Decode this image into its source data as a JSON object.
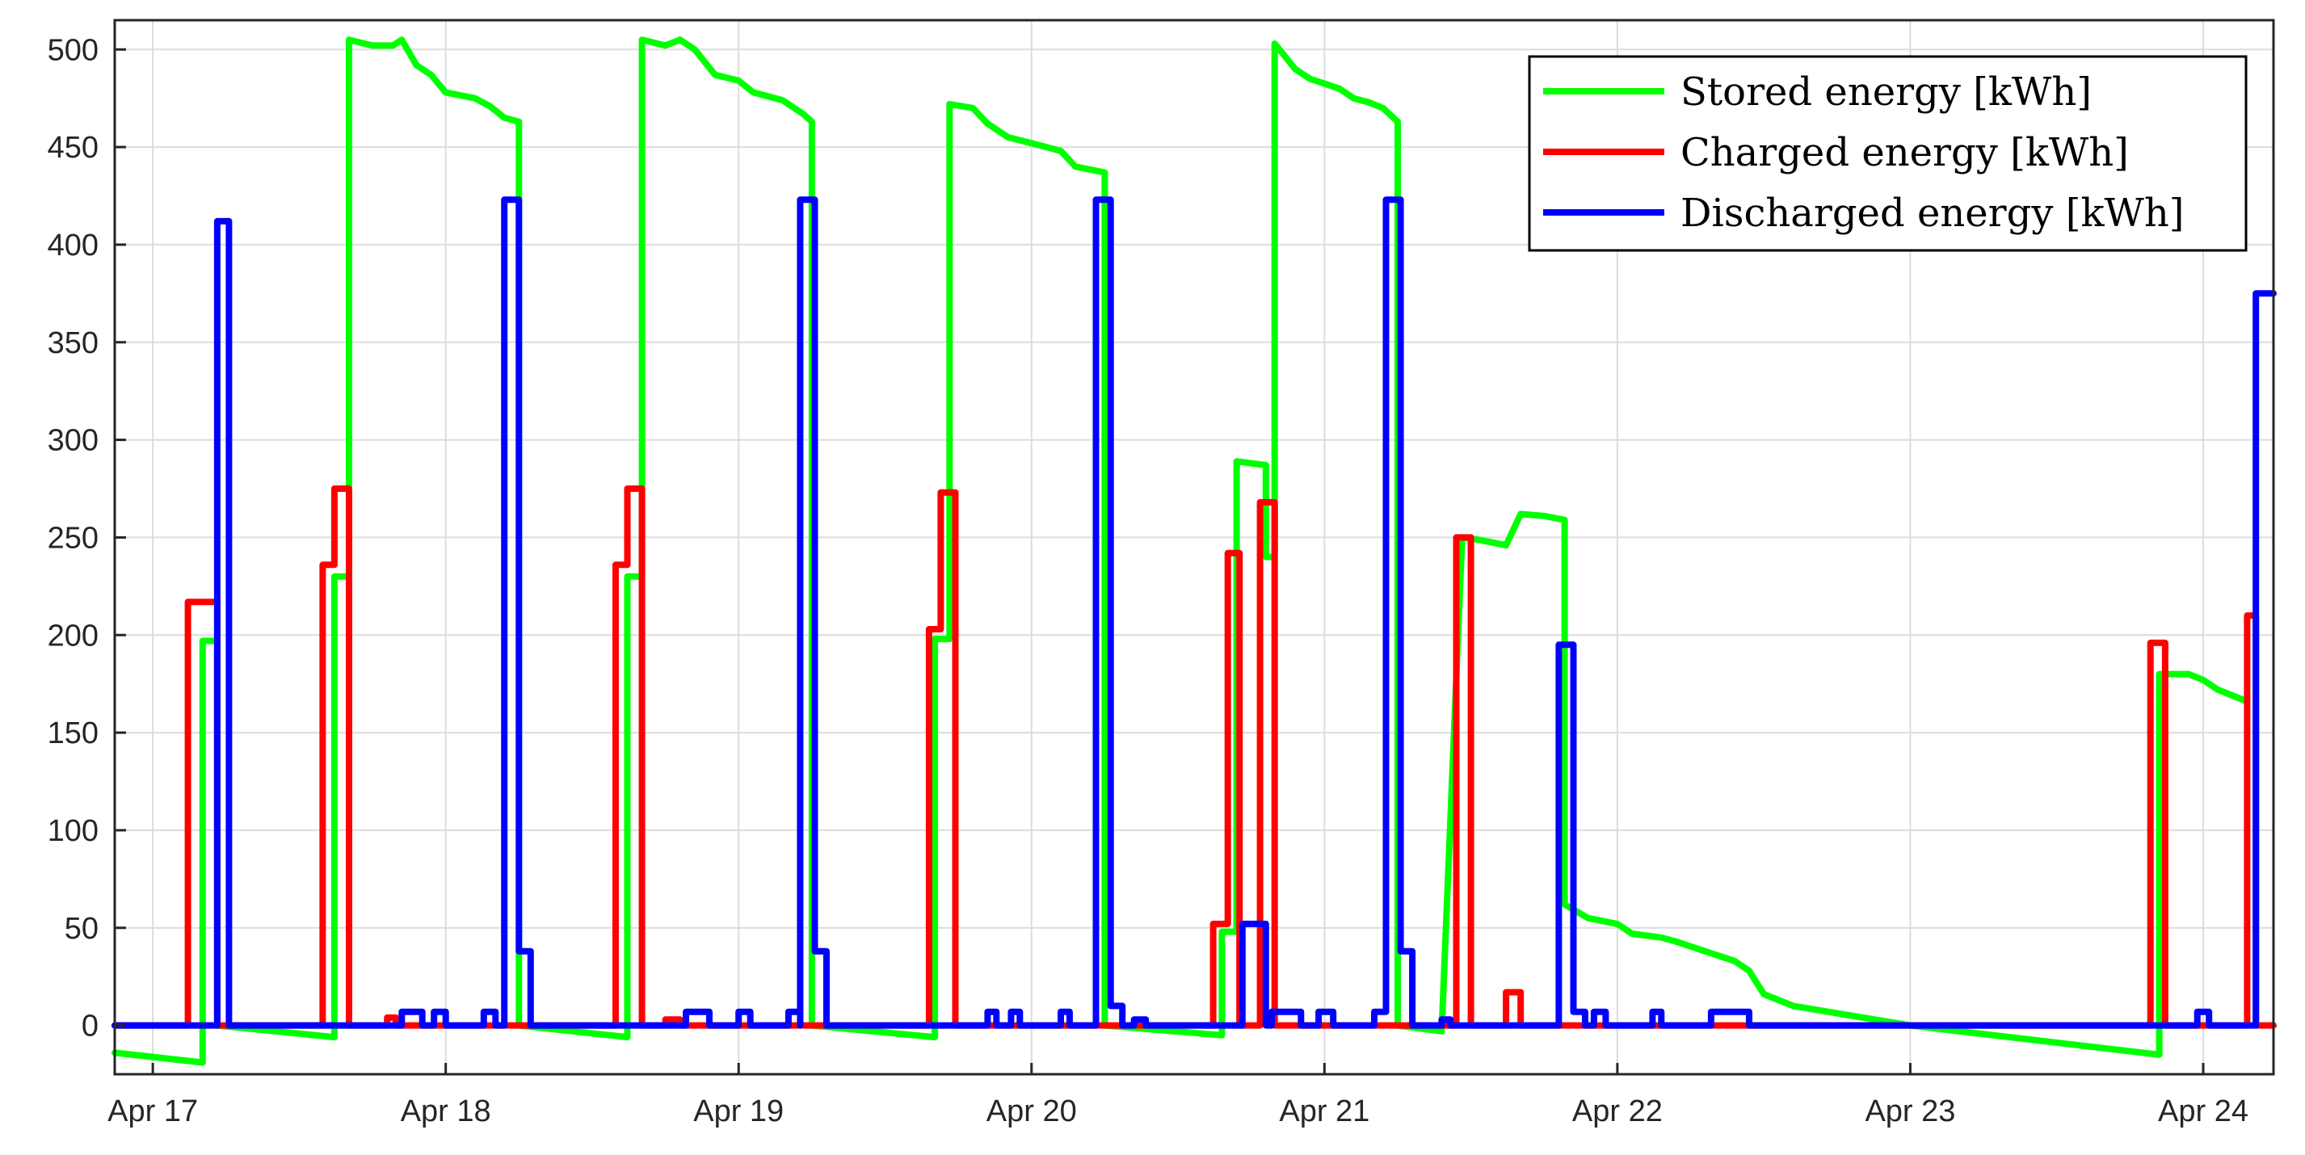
{
  "chart_data": {
    "type": "line",
    "title": "",
    "xlabel": "",
    "ylabel": "",
    "x_axis": {
      "ticks": [
        0,
        1,
        2,
        3,
        4,
        5,
        6,
        7
      ],
      "tick_labels": [
        "Apr 17",
        "Apr 18",
        "Apr 19",
        "Apr 20",
        "Apr 21",
        "Apr 22",
        "Apr 23",
        "Apr 24"
      ],
      "range_days_since_apr17": [
        -0.13,
        7.24
      ]
    },
    "y_axis": {
      "ticks": [
        0,
        50,
        100,
        150,
        200,
        250,
        300,
        350,
        400,
        450,
        500
      ],
      "tick_labels": [
        "0",
        "50",
        "100",
        "150",
        "200",
        "250",
        "300",
        "350",
        "400",
        "450",
        "500"
      ],
      "range": [
        -25,
        515
      ]
    },
    "grid": true,
    "legend_position": "top-right",
    "series": [
      {
        "name": "Stored energy [kWh]",
        "color": "#00ff00",
        "points": [
          [
            -0.13,
            -14
          ],
          [
            0.17,
            -19
          ],
          [
            0.17,
            197
          ],
          [
            0.22,
            197
          ],
          [
            0.22,
            0
          ],
          [
            0.62,
            -6
          ],
          [
            0.62,
            230
          ],
          [
            0.67,
            230
          ],
          [
            0.67,
            274
          ],
          [
            0.67,
            505
          ],
          [
            0.75,
            502
          ],
          [
            0.82,
            502
          ],
          [
            0.85,
            505
          ],
          [
            0.9,
            492
          ],
          [
            0.95,
            487
          ],
          [
            1.0,
            478
          ],
          [
            1.1,
            475
          ],
          [
            1.15,
            471
          ],
          [
            1.2,
            465
          ],
          [
            1.25,
            463
          ],
          [
            1.25,
            0
          ],
          [
            1.62,
            -6
          ],
          [
            1.62,
            230
          ],
          [
            1.67,
            230
          ],
          [
            1.67,
            274
          ],
          [
            1.67,
            505
          ],
          [
            1.75,
            502
          ],
          [
            1.8,
            505
          ],
          [
            1.85,
            500
          ],
          [
            1.92,
            487
          ],
          [
            2.0,
            484
          ],
          [
            2.05,
            478
          ],
          [
            2.15,
            474
          ],
          [
            2.22,
            467
          ],
          [
            2.25,
            463
          ],
          [
            2.25,
            0
          ],
          [
            2.67,
            -6
          ],
          [
            2.67,
            198
          ],
          [
            2.72,
            198
          ],
          [
            2.72,
            472
          ],
          [
            2.8,
            470
          ],
          [
            2.85,
            462
          ],
          [
            2.92,
            455
          ],
          [
            3.0,
            452
          ],
          [
            3.1,
            448
          ],
          [
            3.15,
            440
          ],
          [
            3.25,
            437
          ],
          [
            3.25,
            0
          ],
          [
            3.65,
            -5
          ],
          [
            3.65,
            48
          ],
          [
            3.7,
            48
          ],
          [
            3.7,
            289
          ],
          [
            3.8,
            287
          ],
          [
            3.8,
            240
          ],
          [
            3.83,
            240
          ],
          [
            3.83,
            503
          ],
          [
            3.9,
            490
          ],
          [
            3.95,
            485
          ],
          [
            4.05,
            480
          ],
          [
            4.1,
            475
          ],
          [
            4.15,
            473
          ],
          [
            4.2,
            470
          ],
          [
            4.25,
            463
          ],
          [
            4.25,
            0
          ],
          [
            4.4,
            -3
          ],
          [
            4.47,
            250
          ],
          [
            4.52,
            249
          ],
          [
            4.62,
            246
          ],
          [
            4.67,
            262
          ],
          [
            4.75,
            261
          ],
          [
            4.82,
            259
          ],
          [
            4.82,
            62
          ],
          [
            4.9,
            55
          ],
          [
            5.0,
            52
          ],
          [
            5.05,
            47
          ],
          [
            5.15,
            45
          ],
          [
            5.2,
            43
          ],
          [
            5.3,
            38
          ],
          [
            5.4,
            33
          ],
          [
            5.45,
            28
          ],
          [
            5.5,
            16
          ],
          [
            5.6,
            10
          ],
          [
            6.0,
            0
          ],
          [
            6.85,
            -15
          ],
          [
            6.85,
            180
          ],
          [
            6.95,
            180
          ],
          [
            7.0,
            177
          ],
          [
            7.05,
            172
          ],
          [
            7.15,
            166
          ]
        ]
      },
      {
        "name": "Charged energy [kWh]",
        "color": "#ff0000",
        "points": [
          [
            -0.13,
            0
          ],
          [
            0.12,
            0
          ],
          [
            0.12,
            217
          ],
          [
            0.17,
            217
          ],
          [
            0.22,
            217
          ],
          [
            0.22,
            0
          ],
          [
            0.58,
            0
          ],
          [
            0.58,
            236
          ],
          [
            0.62,
            236
          ],
          [
            0.62,
            275
          ],
          [
            0.67,
            275
          ],
          [
            0.67,
            0
          ],
          [
            0.8,
            0
          ],
          [
            0.8,
            4
          ],
          [
            0.83,
            4
          ],
          [
            0.83,
            0
          ],
          [
            1.58,
            0
          ],
          [
            1.58,
            236
          ],
          [
            1.62,
            236
          ],
          [
            1.62,
            275
          ],
          [
            1.67,
            275
          ],
          [
            1.67,
            0
          ],
          [
            1.75,
            0
          ],
          [
            1.75,
            3
          ],
          [
            1.8,
            3
          ],
          [
            1.8,
            0
          ],
          [
            2.65,
            0
          ],
          [
            2.65,
            203
          ],
          [
            2.69,
            203
          ],
          [
            2.69,
            273
          ],
          [
            2.74,
            273
          ],
          [
            2.74,
            0
          ],
          [
            3.62,
            0
          ],
          [
            3.62,
            52
          ],
          [
            3.67,
            52
          ],
          [
            3.67,
            242
          ],
          [
            3.71,
            242
          ],
          [
            3.71,
            0
          ],
          [
            3.78,
            0
          ],
          [
            3.78,
            268
          ],
          [
            3.83,
            268
          ],
          [
            3.83,
            0
          ],
          [
            3.88,
            0
          ],
          [
            4.45,
            0
          ],
          [
            4.45,
            250
          ],
          [
            4.5,
            250
          ],
          [
            4.5,
            0
          ],
          [
            4.62,
            0
          ],
          [
            4.62,
            17
          ],
          [
            4.67,
            17
          ],
          [
            4.67,
            0
          ],
          [
            6.82,
            0
          ],
          [
            6.82,
            196
          ],
          [
            6.87,
            196
          ],
          [
            6.87,
            0
          ],
          [
            7.15,
            0
          ],
          [
            7.15,
            210
          ],
          [
            7.18,
            210
          ],
          [
            7.18,
            0
          ],
          [
            7.24,
            0
          ]
        ]
      },
      {
        "name": "Discharged energy [kWh]",
        "color": "#0000ff",
        "points": [
          [
            -0.13,
            0
          ],
          [
            0.22,
            0
          ],
          [
            0.22,
            412
          ],
          [
            0.26,
            412
          ],
          [
            0.26,
            0
          ],
          [
            0.85,
            0
          ],
          [
            0.85,
            7
          ],
          [
            0.92,
            7
          ],
          [
            0.92,
            0
          ],
          [
            0.96,
            0
          ],
          [
            0.96,
            7
          ],
          [
            1.0,
            7
          ],
          [
            1.0,
            0
          ],
          [
            1.13,
            0
          ],
          [
            1.13,
            7
          ],
          [
            1.17,
            7
          ],
          [
            1.17,
            0
          ],
          [
            1.2,
            0
          ],
          [
            1.2,
            423
          ],
          [
            1.25,
            423
          ],
          [
            1.25,
            38
          ],
          [
            1.29,
            38
          ],
          [
            1.29,
            0
          ],
          [
            1.82,
            0
          ],
          [
            1.82,
            7
          ],
          [
            1.9,
            7
          ],
          [
            1.9,
            0
          ],
          [
            2.0,
            0
          ],
          [
            2.0,
            7
          ],
          [
            2.04,
            7
          ],
          [
            2.04,
            0
          ],
          [
            2.17,
            0
          ],
          [
            2.17,
            7
          ],
          [
            2.21,
            7
          ],
          [
            2.21,
            0
          ],
          [
            2.21,
            423
          ],
          [
            2.26,
            423
          ],
          [
            2.26,
            38
          ],
          [
            2.3,
            38
          ],
          [
            2.3,
            0
          ],
          [
            2.85,
            0
          ],
          [
            2.85,
            7
          ],
          [
            2.88,
            7
          ],
          [
            2.88,
            0
          ],
          [
            2.93,
            0
          ],
          [
            2.93,
            7
          ],
          [
            2.96,
            7
          ],
          [
            2.96,
            0
          ],
          [
            3.1,
            0
          ],
          [
            3.1,
            7
          ],
          [
            3.13,
            7
          ],
          [
            3.13,
            0
          ],
          [
            3.22,
            0
          ],
          [
            3.22,
            423
          ],
          [
            3.27,
            423
          ],
          [
            3.27,
            10
          ],
          [
            3.31,
            10
          ],
          [
            3.31,
            0
          ],
          [
            3.35,
            0
          ],
          [
            3.35,
            3
          ],
          [
            3.39,
            3
          ],
          [
            3.39,
            0
          ],
          [
            3.72,
            0
          ],
          [
            3.72,
            52
          ],
          [
            3.8,
            52
          ],
          [
            3.8,
            0
          ],
          [
            3.82,
            0
          ],
          [
            3.82,
            7
          ],
          [
            3.92,
            7
          ],
          [
            3.92,
            0
          ],
          [
            3.98,
            0
          ],
          [
            3.98,
            7
          ],
          [
            4.03,
            7
          ],
          [
            4.03,
            0
          ],
          [
            4.17,
            0
          ],
          [
            4.17,
            7
          ],
          [
            4.21,
            7
          ],
          [
            4.21,
            423
          ],
          [
            4.26,
            423
          ],
          [
            4.26,
            38
          ],
          [
            4.3,
            38
          ],
          [
            4.3,
            0
          ],
          [
            4.4,
            0
          ],
          [
            4.4,
            3
          ],
          [
            4.43,
            3
          ],
          [
            4.43,
            0
          ],
          [
            4.8,
            0
          ],
          [
            4.8,
            195
          ],
          [
            4.85,
            195
          ],
          [
            4.85,
            7
          ],
          [
            4.89,
            7
          ],
          [
            4.89,
            0
          ],
          [
            4.92,
            0
          ],
          [
            4.92,
            7
          ],
          [
            4.96,
            7
          ],
          [
            4.96,
            0
          ],
          [
            5.12,
            0
          ],
          [
            5.12,
            7
          ],
          [
            5.15,
            7
          ],
          [
            5.15,
            0
          ],
          [
            5.32,
            0
          ],
          [
            5.32,
            7
          ],
          [
            5.45,
            7
          ],
          [
            5.45,
            0
          ],
          [
            6.98,
            0
          ],
          [
            6.98,
            7
          ],
          [
            7.02,
            7
          ],
          [
            7.02,
            0
          ],
          [
            7.18,
            0
          ],
          [
            7.18,
            375
          ],
          [
            7.24,
            375
          ]
        ]
      }
    ]
  }
}
